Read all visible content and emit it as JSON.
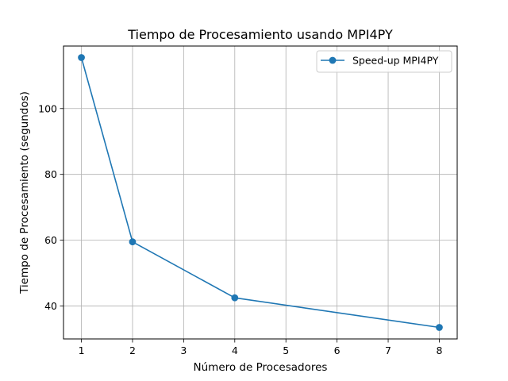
{
  "chart_data": {
    "type": "line",
    "title": "Tiempo de Procesamiento usando MPI4PY",
    "xlabel": "Número de Procesadores",
    "ylabel": "Tiempo de Procesamiento (segundos)",
    "xlim": [
      0.65,
      8.35
    ],
    "ylim": [
      30,
      119
    ],
    "xticks": [
      1,
      2,
      3,
      4,
      5,
      6,
      7,
      8
    ],
    "yticks": [
      40,
      60,
      80,
      100
    ],
    "grid": true,
    "legend_position": "top-right",
    "series": [
      {
        "name": "Speed-up MPI4PY",
        "color": "#1f77b4",
        "marker": "circle",
        "x": [
          1,
          2,
          4,
          8
        ],
        "y": [
          115.5,
          59.5,
          42.5,
          33.5
        ]
      }
    ]
  }
}
